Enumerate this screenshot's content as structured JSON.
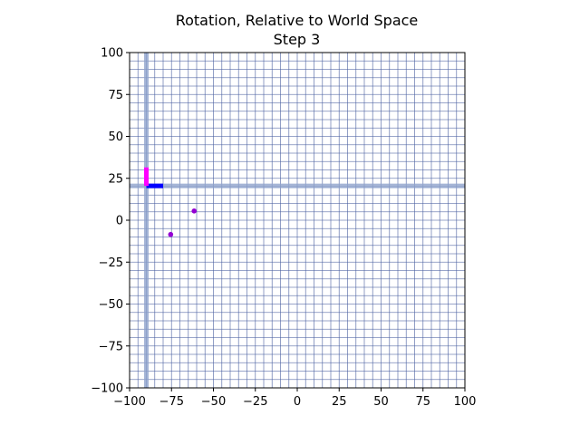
{
  "chart_data": {
    "type": "scatter",
    "title": "Rotation, Relative to World Space",
    "subtitle": "Step 3",
    "xlabel": "",
    "ylabel": "",
    "xlim": [
      -100,
      100
    ],
    "ylim": [
      -100,
      100
    ],
    "grid": true,
    "grid_step": 5,
    "xticks": [
      -100,
      -75,
      -50,
      -25,
      0,
      25,
      50,
      75,
      100
    ],
    "yticks": [
      -100,
      -75,
      -50,
      -25,
      0,
      25,
      50,
      75,
      100
    ],
    "xtick_labels": [
      "−100",
      "−75",
      "−50",
      "−25",
      "0",
      "25",
      "50",
      "75",
      "100"
    ],
    "ytick_labels": [
      "−100",
      "−75",
      "−50",
      "−25",
      "0",
      "25",
      "50",
      "75",
      "100"
    ],
    "reference_axes": {
      "x": -90,
      "y": 20.5
    },
    "basis_vectors": [
      {
        "from": [
          -90,
          20.5
        ],
        "to": [
          -80,
          20.5
        ],
        "color": "#0000ff"
      },
      {
        "from": [
          -90,
          20.5
        ],
        "to": [
          -90,
          31.5
        ],
        "color": "#ff00ff"
      }
    ],
    "points": [
      {
        "x": -61.5,
        "y": 5.5
      },
      {
        "x": -75.5,
        "y": -8.5
      }
    ],
    "colors": {
      "grid_minor": "#4a5fa0",
      "grid_major": "#8fa3cc",
      "grid_background": "#808080",
      "point": "#9400d3"
    }
  }
}
